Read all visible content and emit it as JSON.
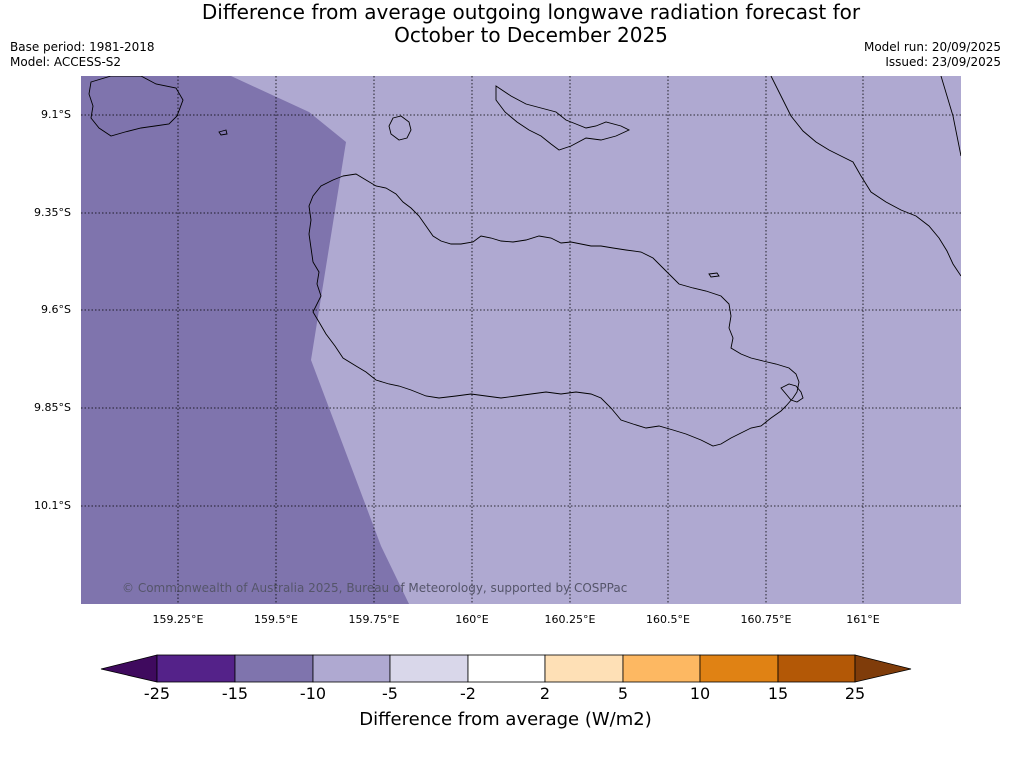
{
  "title": {
    "line1": "Difference from average outgoing longwave radiation forecast for",
    "line2": "October to December 2025"
  },
  "meta": {
    "base_period": "Base period: 1981-2018",
    "model": "Model: ACCESS-S2",
    "model_run": "Model run: 20/09/2025",
    "issued": "Issued: 23/09/2025"
  },
  "map": {
    "lat_labels": [
      "9.1°S",
      "9.35°S",
      "9.6°S",
      "9.85°S",
      "10.1°S"
    ],
    "lon_labels": [
      "159.25°E",
      "159.5°E",
      "159.75°E",
      "160°E",
      "160.25°E",
      "160.5°E",
      "160.75°E",
      "161°E"
    ],
    "copyright": "© Commonwealth of Australia 2025, Bureau of Meteorology, supported by COSPPac",
    "colors": {
      "band_minus10_minus5": "#afa9d1",
      "band_minus15_minus10": "#7f74ad"
    }
  },
  "colorbar": {
    "title": "Difference from average (W/m2)",
    "labels": [
      "-25",
      "-15",
      "-10",
      "-5",
      "-2",
      "2",
      "5",
      "10",
      "15",
      "25"
    ],
    "colors": [
      "#3f0a5e",
      "#542289",
      "#7f74ad",
      "#afa9d1",
      "#d9d7ea",
      "#ffffff",
      "#fee0b6",
      "#fdb862",
      "#e08214",
      "#b35806",
      "#7f3c0a"
    ]
  }
}
